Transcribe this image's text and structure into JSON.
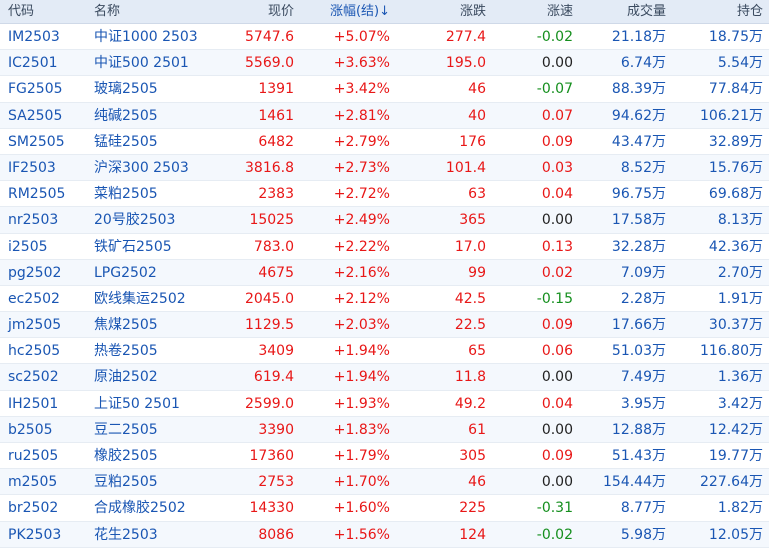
{
  "headers": {
    "code": "代码",
    "name": "名称",
    "price": "现价",
    "change_pct": "涨幅(结)↓",
    "change": "涨跌",
    "speed": "涨速",
    "volume": "成交量",
    "open_interest": "持仓"
  },
  "rows": [
    {
      "code": "IM2503",
      "name": "中证1000 2503",
      "price": "5747.6",
      "change_pct": "+5.07%",
      "change": "277.4",
      "speed": "-0.02",
      "volume": "21.18万",
      "open_interest": "18.75万"
    },
    {
      "code": "IC2501",
      "name": "中证500 2501",
      "price": "5569.0",
      "change_pct": "+3.63%",
      "change": "195.0",
      "speed": "0.00",
      "volume": "6.74万",
      "open_interest": "5.54万"
    },
    {
      "code": "FG2505",
      "name": "玻璃2505",
      "price": "1391",
      "change_pct": "+3.42%",
      "change": "46",
      "speed": "-0.07",
      "volume": "88.39万",
      "open_interest": "77.84万"
    },
    {
      "code": "SA2505",
      "name": "纯碱2505",
      "price": "1461",
      "change_pct": "+2.81%",
      "change": "40",
      "speed": "0.07",
      "volume": "94.62万",
      "open_interest": "106.21万"
    },
    {
      "code": "SM2505",
      "name": "锰硅2505",
      "price": "6482",
      "change_pct": "+2.79%",
      "change": "176",
      "speed": "0.09",
      "volume": "43.47万",
      "open_interest": "32.89万"
    },
    {
      "code": "IF2503",
      "name": "沪深300 2503",
      "price": "3816.8",
      "change_pct": "+2.73%",
      "change": "101.4",
      "speed": "0.03",
      "volume": "8.52万",
      "open_interest": "15.76万"
    },
    {
      "code": "RM2505",
      "name": "菜粕2505",
      "price": "2383",
      "change_pct": "+2.72%",
      "change": "63",
      "speed": "0.04",
      "volume": "96.75万",
      "open_interest": "69.68万"
    },
    {
      "code": "nr2503",
      "name": "20号胶2503",
      "price": "15025",
      "change_pct": "+2.49%",
      "change": "365",
      "speed": "0.00",
      "volume": "17.58万",
      "open_interest": "8.13万"
    },
    {
      "code": "i2505",
      "name": "铁矿石2505",
      "price": "783.0",
      "change_pct": "+2.22%",
      "change": "17.0",
      "speed": "0.13",
      "volume": "32.28万",
      "open_interest": "42.36万"
    },
    {
      "code": "pg2502",
      "name": "LPG2502",
      "price": "4675",
      "change_pct": "+2.16%",
      "change": "99",
      "speed": "0.02",
      "volume": "7.09万",
      "open_interest": "2.70万"
    },
    {
      "code": "ec2502",
      "name": "欧线集运2502",
      "price": "2045.0",
      "change_pct": "+2.12%",
      "change": "42.5",
      "speed": "-0.15",
      "volume": "2.28万",
      "open_interest": "1.91万"
    },
    {
      "code": "jm2505",
      "name": "焦煤2505",
      "price": "1129.5",
      "change_pct": "+2.03%",
      "change": "22.5",
      "speed": "0.09",
      "volume": "17.66万",
      "open_interest": "30.37万"
    },
    {
      "code": "hc2505",
      "name": "热卷2505",
      "price": "3409",
      "change_pct": "+1.94%",
      "change": "65",
      "speed": "0.06",
      "volume": "51.03万",
      "open_interest": "116.80万"
    },
    {
      "code": "sc2502",
      "name": "原油2502",
      "price": "619.4",
      "change_pct": "+1.94%",
      "change": "11.8",
      "speed": "0.00",
      "volume": "7.49万",
      "open_interest": "1.36万"
    },
    {
      "code": "IH2501",
      "name": "上证50 2501",
      "price": "2599.0",
      "change_pct": "+1.93%",
      "change": "49.2",
      "speed": "0.04",
      "volume": "3.95万",
      "open_interest": "3.42万"
    },
    {
      "code": "b2505",
      "name": "豆二2505",
      "price": "3390",
      "change_pct": "+1.83%",
      "change": "61",
      "speed": "0.00",
      "volume": "12.88万",
      "open_interest": "12.42万"
    },
    {
      "code": "ru2505",
      "name": "橡胶2505",
      "price": "17360",
      "change_pct": "+1.79%",
      "change": "305",
      "speed": "0.09",
      "volume": "51.43万",
      "open_interest": "19.77万"
    },
    {
      "code": "m2505",
      "name": "豆粕2505",
      "price": "2753",
      "change_pct": "+1.70%",
      "change": "46",
      "speed": "0.00",
      "volume": "154.44万",
      "open_interest": "227.64万"
    },
    {
      "code": "br2502",
      "name": "合成橡胶2502",
      "price": "14330",
      "change_pct": "+1.60%",
      "change": "225",
      "speed": "-0.31",
      "volume": "8.77万",
      "open_interest": "1.82万"
    },
    {
      "code": "PK2503",
      "name": "花生2503",
      "price": "8086",
      "change_pct": "+1.56%",
      "change": "124",
      "speed": "-0.02",
      "volume": "5.98万",
      "open_interest": "12.05万"
    }
  ],
  "colors": {
    "up": "#e81717",
    "down": "#158f1e",
    "flat": "#222222",
    "link": "#1a56b3",
    "header_bg": "#e3ebf6",
    "alt_row_bg": "#f4f8fd"
  }
}
